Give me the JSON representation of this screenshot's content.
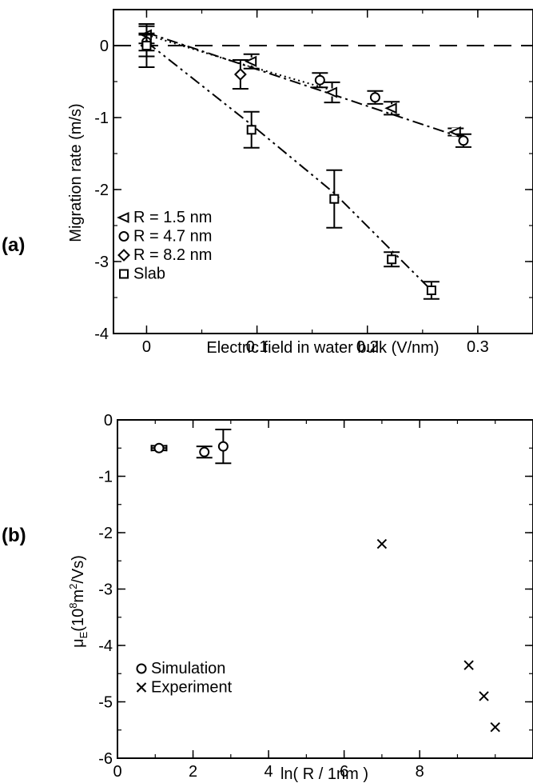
{
  "chart_data": [
    {
      "type": "scatter",
      "panel_label": "(a)",
      "xlabel": "Electric field in water bulk (V/nm)",
      "ylabel": "Migration rate (m/s)",
      "xlim": [
        -0.03,
        0.35
      ],
      "ylim": [
        -4,
        0.5
      ],
      "xticks": [
        0,
        0.1,
        0.2,
        0.3
      ],
      "xtick_labels": [
        "0",
        "0.1",
        "0.2",
        "0.3"
      ],
      "yticks": [
        0,
        -1,
        -2,
        -3,
        -4
      ],
      "ytick_labels": [
        "0",
        "-1",
        "-2",
        "-3",
        "-4"
      ],
      "xminor": 0.05,
      "yminor": 0.5,
      "grid": false,
      "legend_placement": "bottom-left",
      "zero_line": {
        "y": 0,
        "style": "dashed"
      },
      "series": [
        {
          "name": "R = 1.5 nm",
          "marker": "triangle-left",
          "points": [
            {
              "x": 0.0,
              "y": 0.15,
              "err": 0.12
            },
            {
              "x": 0.095,
              "y": -0.22,
              "err": 0.1
            },
            {
              "x": 0.168,
              "y": -0.65,
              "err": 0.14
            },
            {
              "x": 0.222,
              "y": -0.87,
              "err": 0.09
            },
            {
              "x": 0.28,
              "y": -1.2,
              "err": 0.05
            }
          ]
        },
        {
          "name": "R = 4.7 nm",
          "marker": "circle",
          "points": [
            {
              "x": 0.0,
              "y": 0.05,
              "err": 0.12
            },
            {
              "x": 0.157,
              "y": -0.48,
              "err": 0.1
            },
            {
              "x": 0.207,
              "y": -0.72,
              "err": 0.09
            },
            {
              "x": 0.287,
              "y": -1.32,
              "err": 0.09
            }
          ]
        },
        {
          "name": "R = 8.2 nm",
          "marker": "diamond",
          "points": [
            {
              "x": 0.0,
              "y": 0.0,
              "err": 0.15
            },
            {
              "x": 0.085,
              "y": -0.4,
              "err": 0.2
            }
          ]
        },
        {
          "name": "Slab",
          "marker": "square",
          "points": [
            {
              "x": 0.0,
              "y": 0.0,
              "err": 0.3
            },
            {
              "x": 0.095,
              "y": -1.17,
              "err": 0.25
            },
            {
              "x": 0.17,
              "y": -2.13,
              "err": 0.4
            },
            {
              "x": 0.222,
              "y": -2.97,
              "err": 0.1
            },
            {
              "x": 0.258,
              "y": -3.4,
              "err": 0.12
            }
          ]
        }
      ],
      "fit_lines": [
        {
          "style": "dotted",
          "points": [
            [
              0.0,
              0.15
            ],
            [
              0.085,
              -0.25
            ],
            [
              0.168,
              -0.62
            ]
          ]
        },
        {
          "style": "dash-dot",
          "points": [
            [
              0.0,
              0.18
            ],
            [
              0.29,
              -1.3
            ]
          ]
        },
        {
          "style": "dash-dot-dot",
          "points": [
            [
              0.0,
              0.05
            ],
            [
              0.095,
              -1.1
            ],
            [
              0.17,
              -2.05
            ],
            [
              0.258,
              -3.4
            ]
          ]
        }
      ]
    },
    {
      "type": "scatter",
      "panel_label": "(b)",
      "xlabel": "ln( R / 1nm )",
      "ylabel": "μ",
      "ylabel_sub": "E",
      "ylabel_rest": "(10",
      "ylabel_sup1": "8",
      "ylabel_mid": "m",
      "ylabel_sup2": "2",
      "ylabel_end": "/Vs)",
      "xlim": [
        0,
        11
      ],
      "ylim": [
        -6,
        0
      ],
      "xticks": [
        0,
        2,
        4,
        6,
        8
      ],
      "xtick_labels": [
        "0",
        "2",
        "4",
        "6",
        "8"
      ],
      "yticks": [
        0,
        -1,
        -2,
        -3,
        -4,
        -5,
        -6
      ],
      "ytick_labels": [
        "0",
        "-1",
        "-2",
        "-3",
        "-4",
        "-5",
        "-6"
      ],
      "xminor": 1,
      "yminor": 0.5,
      "grid": false,
      "legend_placement": "bottom-left",
      "series": [
        {
          "name": "Simulation",
          "marker": "circle",
          "points": [
            {
              "x": 1.1,
              "y": -0.5,
              "xerr": 0.2,
              "err": 0.04
            },
            {
              "x": 2.3,
              "y": -0.57,
              "err": 0.1
            },
            {
              "x": 2.8,
              "y": -0.47,
              "err": 0.3
            }
          ]
        },
        {
          "name": "Experiment",
          "marker": "x",
          "points": [
            {
              "x": 7.0,
              "y": -2.2
            },
            {
              "x": 9.3,
              "y": -4.35
            },
            {
              "x": 9.7,
              "y": -4.9
            },
            {
              "x": 10.0,
              "y": -5.45
            }
          ]
        }
      ]
    }
  ]
}
